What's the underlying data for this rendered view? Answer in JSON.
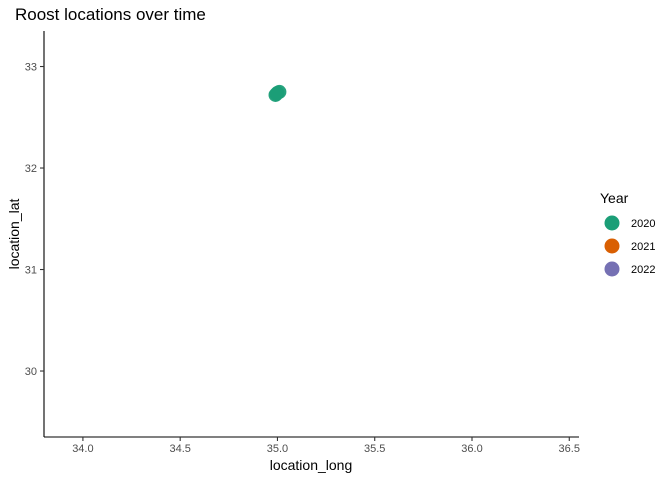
{
  "chart_data": {
    "type": "scatter",
    "title": "Roost locations over time",
    "xlabel": "location_long",
    "ylabel": "location_lat",
    "xlim": [
      33.8,
      36.55
    ],
    "ylim": [
      29.35,
      33.35
    ],
    "xticks": [
      34.0,
      34.5,
      35.0,
      35.5,
      36.0,
      36.5
    ],
    "xtick_labels": [
      "34.0",
      "34.5",
      "35.0",
      "35.5",
      "36.0",
      "36.5"
    ],
    "yticks": [
      30,
      31,
      32,
      33
    ],
    "ytick_labels": [
      "30",
      "31",
      "32",
      "33"
    ],
    "grid": false,
    "legend": {
      "title": "Year",
      "placement": "right",
      "entries": [
        {
          "label": "2020",
          "color": "#1B9E77"
        },
        {
          "label": "2021",
          "color": "#D95F02"
        },
        {
          "label": "2022",
          "color": "#7570B3"
        }
      ]
    },
    "series": [
      {
        "name": "2020",
        "color": "#1B9E77",
        "points": [
          {
            "x": 34.99,
            "y": 32.72
          },
          {
            "x": 35.0,
            "y": 32.74
          },
          {
            "x": 35.01,
            "y": 32.75
          },
          {
            "x": 34.995,
            "y": 32.73
          }
        ]
      }
    ]
  }
}
